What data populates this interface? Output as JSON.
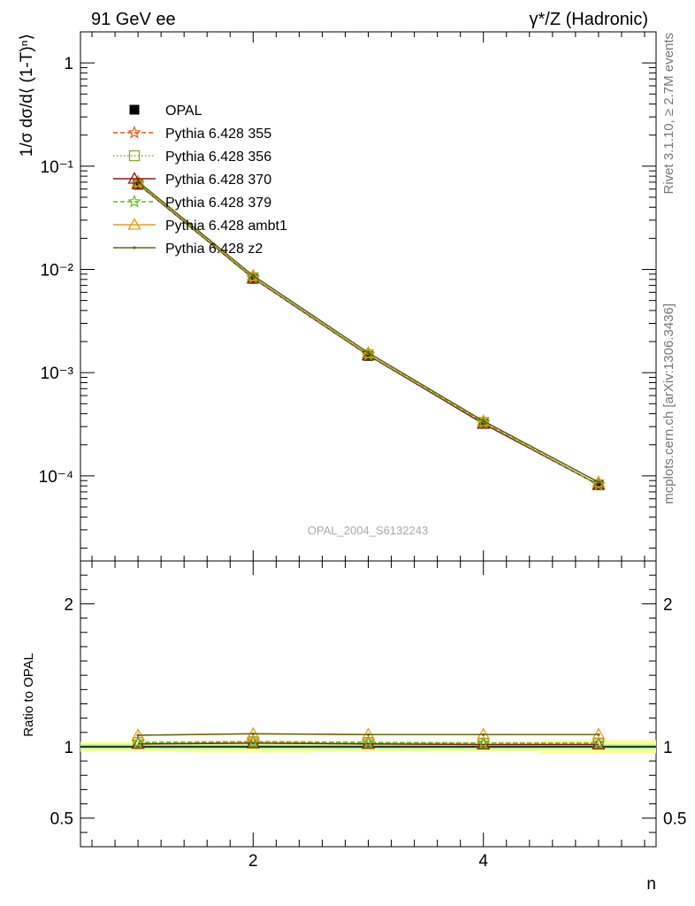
{
  "header": {
    "left": "91 GeV ee",
    "right": "γ*/Z (Hadronic)"
  },
  "side_text": {
    "top": "Rivet 3.1.10, ≥ 2.7M events",
    "bottom": "mcplots.cern.ch [arXiv:1306.3436]"
  },
  "watermark": "OPAL_2004_S6132243",
  "chart_data": [
    {
      "type": "line",
      "panel": "main",
      "ylabel": "1/σ dσ/d⟨ (1-T)ⁿ⟩",
      "yscale": "log",
      "xlim": [
        0.5,
        5.5
      ],
      "ylim": [
        1.5e-05,
        2
      ],
      "y_tick_labels": [
        "1",
        "10⁻¹",
        "10⁻²",
        "10⁻³",
        "10⁻⁴"
      ],
      "y_tick_values": [
        1,
        0.1,
        0.01,
        0.001,
        0.0001
      ],
      "legend_position": "top-left",
      "series": [
        {
          "name": "OPAL",
          "color": "#000000",
          "marker": "filled-square",
          "line": "none",
          "x": [
            1,
            2,
            3,
            4,
            5
          ],
          "y": [
            0.066,
            0.0081,
            0.00145,
            0.00032,
            8.1e-05
          ]
        },
        {
          "name": "Pythia 6.428 355",
          "color": "#ee5511",
          "marker": "star",
          "line": "dashed",
          "x": [
            1,
            2,
            3,
            4,
            5
          ],
          "y": [
            0.068,
            0.0083,
            0.00149,
            0.00033,
            8.2e-05
          ]
        },
        {
          "name": "Pythia 6.428 356",
          "color": "#88aa22",
          "marker": "open-square",
          "line": "dotted",
          "x": [
            1,
            2,
            3,
            4,
            5
          ],
          "y": [
            0.068,
            0.0083,
            0.00149,
            0.00033,
            8.2e-05
          ]
        },
        {
          "name": "Pythia 6.428 370",
          "color": "#8b1a1a",
          "marker": "open-triangle",
          "line": "solid",
          "x": [
            1,
            2,
            3,
            4,
            5
          ],
          "y": [
            0.067,
            0.0082,
            0.00147,
            0.00032,
            8.2e-05
          ]
        },
        {
          "name": "Pythia 6.428 379",
          "color": "#66bb22",
          "marker": "star",
          "line": "dashed",
          "x": [
            1,
            2,
            3,
            4,
            5
          ],
          "y": [
            0.068,
            0.0083,
            0.00149,
            0.00033,
            8.2e-05
          ]
        },
        {
          "name": "Pythia 6.428 ambt1",
          "color": "#ee9911",
          "marker": "open-triangle",
          "line": "solid",
          "x": [
            1,
            2,
            3,
            4,
            5
          ],
          "y": [
            0.071,
            0.0087,
            0.00156,
            0.00034,
            8.7e-05
          ]
        },
        {
          "name": "Pythia 6.428 z2",
          "color": "#666611",
          "marker": "dot",
          "line": "solid",
          "x": [
            1,
            2,
            3,
            4,
            5
          ],
          "y": [
            0.071,
            0.0087,
            0.00156,
            0.00034,
            8.7e-05
          ]
        }
      ]
    },
    {
      "type": "line",
      "panel": "ratio",
      "xlabel": "n",
      "ylabel": "Ratio to OPAL",
      "xlim": [
        0.5,
        5.5
      ],
      "ylim": [
        0.3,
        2.3
      ],
      "x_tick_labels": [
        "2",
        "4"
      ],
      "x_tick_values": [
        2,
        4
      ],
      "y_tick_labels": [
        "0.5",
        "1",
        "2"
      ],
      "y_tick_values": [
        0.5,
        1,
        2
      ],
      "band": {
        "x": [
          0.5,
          1.5,
          2.5,
          3.5,
          4.5,
          5.5
        ],
        "outer": [
          [
            0.965,
            1.035
          ],
          [
            0.96,
            1.04
          ],
          [
            0.965,
            1.035
          ],
          [
            0.965,
            1.035
          ],
          [
            0.955,
            1.045
          ]
        ],
        "inner": [
          [
            0.985,
            1.015
          ],
          [
            0.985,
            1.015
          ],
          [
            0.985,
            1.015
          ],
          [
            0.985,
            1.015
          ],
          [
            0.985,
            1.015
          ]
        ]
      },
      "series": [
        {
          "name": "Pythia 6.428 355",
          "x": [
            1,
            2,
            3,
            4,
            5
          ],
          "y": [
            1.03,
            1.035,
            1.03,
            1.025,
            1.025
          ]
        },
        {
          "name": "Pythia 6.428 356",
          "x": [
            1,
            2,
            3,
            4,
            5
          ],
          "y": [
            1.03,
            1.035,
            1.03,
            1.025,
            1.025
          ]
        },
        {
          "name": "Pythia 6.428 370",
          "x": [
            1,
            2,
            3,
            4,
            5
          ],
          "y": [
            1.02,
            1.025,
            1.02,
            1.015,
            1.015
          ]
        },
        {
          "name": "Pythia 6.428 379",
          "x": [
            1,
            2,
            3,
            4,
            5
          ],
          "y": [
            1.03,
            1.035,
            1.03,
            1.025,
            1.025
          ]
        },
        {
          "name": "Pythia 6.428 ambt1",
          "x": [
            1,
            2,
            3,
            4,
            5
          ],
          "y": [
            1.08,
            1.09,
            1.085,
            1.085,
            1.085
          ]
        },
        {
          "name": "Pythia 6.428 z2",
          "x": [
            1,
            2,
            3,
            4,
            5
          ],
          "y": [
            1.08,
            1.09,
            1.085,
            1.085,
            1.085
          ]
        }
      ]
    }
  ]
}
